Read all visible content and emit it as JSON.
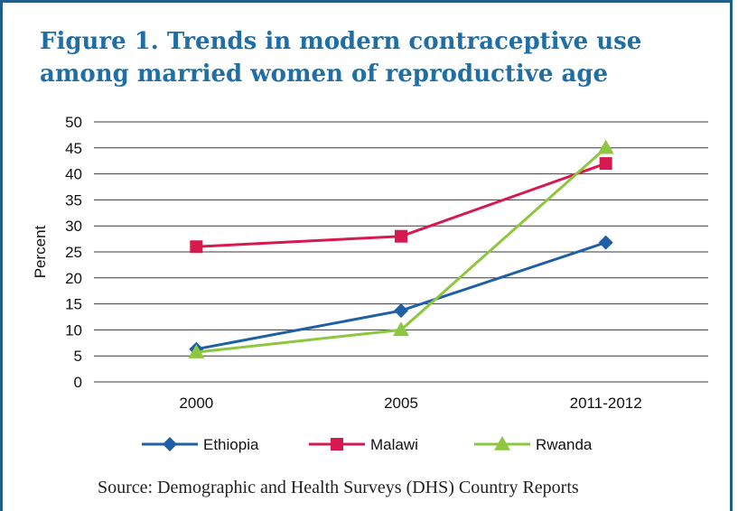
{
  "title": "Figure 1. Trends in modern contraceptive use among married women of reproductive age",
  "source": "Source: Demographic and Health Surveys (DHS) Country Reports",
  "chart_data": {
    "type": "line",
    "ylabel": "Percent",
    "xlabel": "",
    "ylim": [
      0,
      50
    ],
    "yticks": [
      0,
      5,
      10,
      15,
      20,
      25,
      30,
      35,
      40,
      45,
      50
    ],
    "categories": [
      "2000",
      "2005",
      "2011-2012"
    ],
    "grid": "horizontal",
    "legend_position": "bottom",
    "series": [
      {
        "name": "Ethiopia",
        "values": [
          6.3,
          13.7,
          26.8
        ],
        "color": "#1f5fa6",
        "marker": "diamond"
      },
      {
        "name": "Malawi",
        "values": [
          26,
          28,
          42
        ],
        "color": "#d6194e",
        "marker": "square"
      },
      {
        "name": "Rwanda",
        "values": [
          5.7,
          10,
          45
        ],
        "color": "#8dc63f",
        "marker": "triangle"
      }
    ]
  },
  "colors": {
    "title": "#1f6fa6",
    "frame": "#1f5f8a"
  }
}
